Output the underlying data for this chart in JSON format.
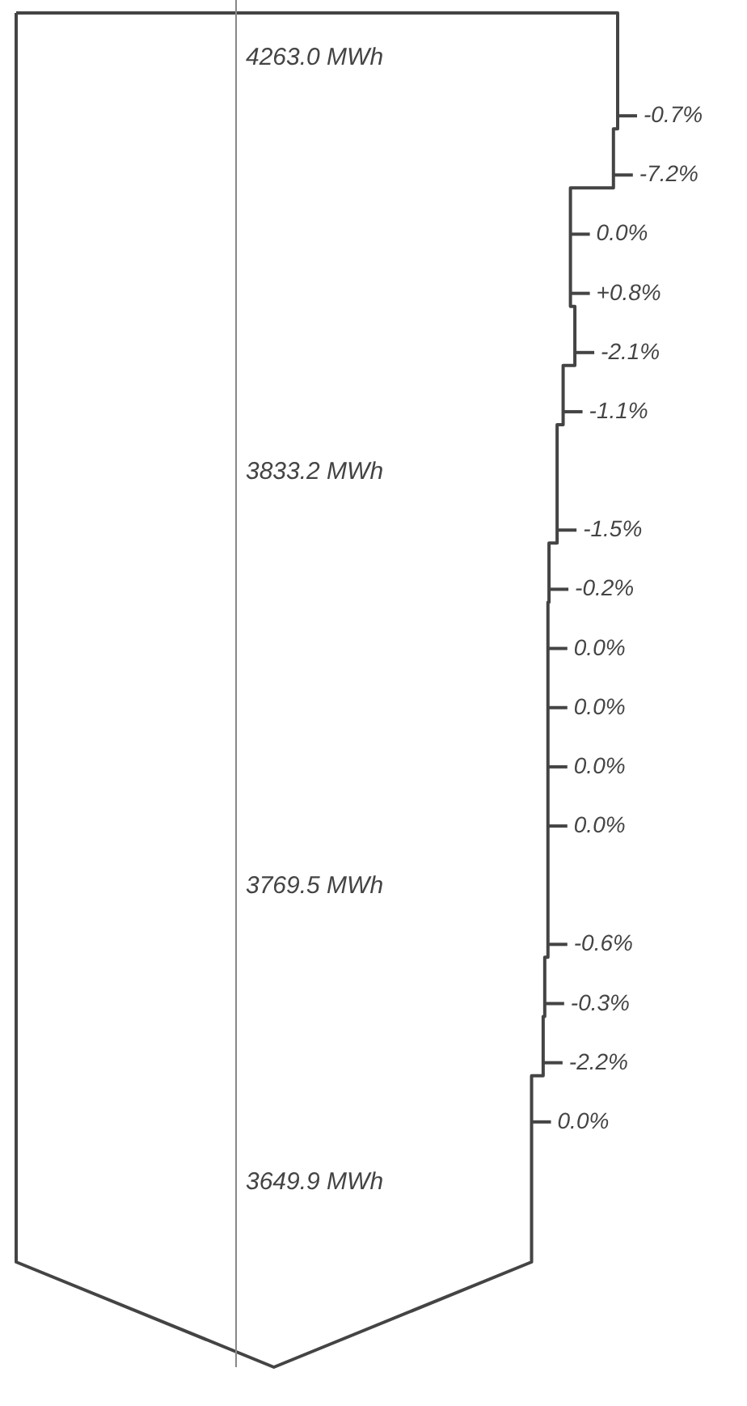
{
  "chart_data": {
    "type": "other",
    "categories": [
      null,
      null,
      null,
      null,
      null,
      null,
      null,
      null,
      null,
      null,
      null,
      null,
      null,
      null,
      null,
      null
    ],
    "values": [
      -0.7,
      -7.2,
      0.0,
      0.8,
      -2.1,
      -1.1,
      -1.5,
      -0.2,
      0.0,
      0.0,
      0.0,
      0.0,
      -0.6,
      -0.3,
      -2.2,
      0.0
    ],
    "value_labels": [
      "-0.7%",
      "-7.2%",
      "0.0%",
      "+0.8%",
      "-2.1%",
      "-1.1%",
      "-1.5%",
      "-0.2%",
      "0.0%",
      "0.0%",
      "0.0%",
      "0.0%",
      "-0.6%",
      "-0.3%",
      "-2.2%",
      "0.0%"
    ],
    "colors": [
      "#444444",
      "#444444",
      "#444444",
      "#444444",
      "#444444",
      "#444444",
      "#444444",
      "#444444",
      "#444444",
      "#444444",
      "#444444",
      "#444444",
      "#444444",
      "#444444",
      "#444444",
      "#444444"
    ],
    "annotations": [
      "4263.0 MWh",
      "3833.2 MWh",
      "3769.5 MWh",
      "3649.9 MWh"
    ]
  }
}
